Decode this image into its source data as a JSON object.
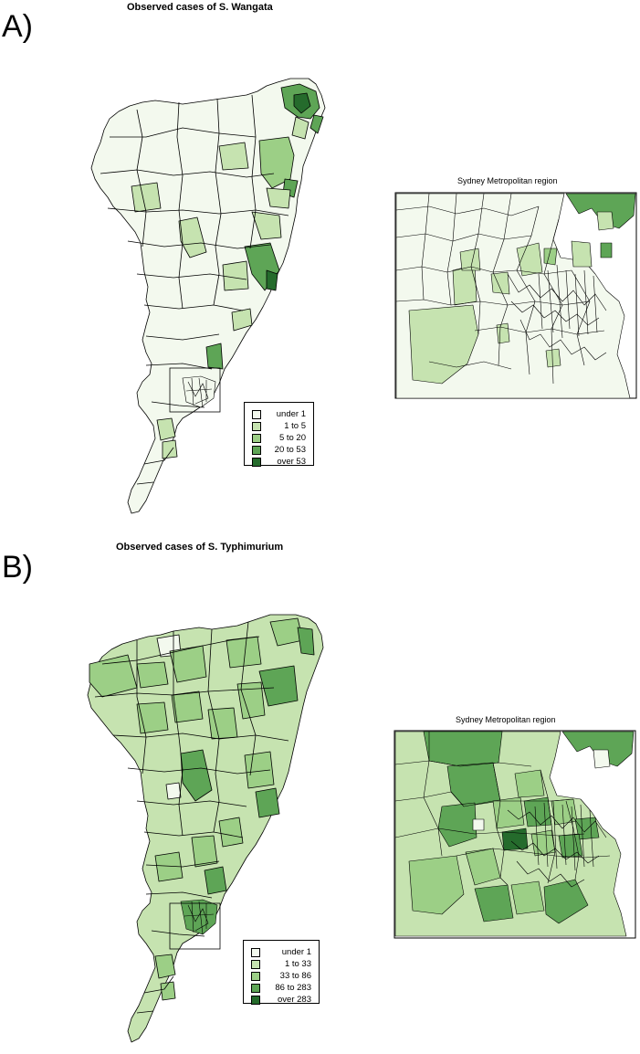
{
  "panels": [
    {
      "letter": "A)",
      "title": "Observed cases of S. Wangata",
      "inset_title": "Sydney Metropolitan region",
      "legend": [
        {
          "label": "under 1",
          "color": "#f3f9ee"
        },
        {
          "label": "1 to 5",
          "color": "#c6e3b0"
        },
        {
          "label": "5 to 20",
          "color": "#9ccf86"
        },
        {
          "label": "20 to 53",
          "color": "#5ea556"
        },
        {
          "label": "over 53",
          "color": "#256b2c"
        }
      ]
    },
    {
      "letter": "B)",
      "title": "Observed cases of S. Typhimurium",
      "inset_title": "Sydney Metropolitan region",
      "legend": [
        {
          "label": "under 1",
          "color": "#f3f9ee"
        },
        {
          "label": "1 to 33",
          "color": "#c6e3b0"
        },
        {
          "label": "33 to 86",
          "color": "#9ccf86"
        },
        {
          "label": "86 to 283",
          "color": "#5ea556"
        },
        {
          "label": "over 283",
          "color": "#256b2c"
        }
      ]
    }
  ]
}
